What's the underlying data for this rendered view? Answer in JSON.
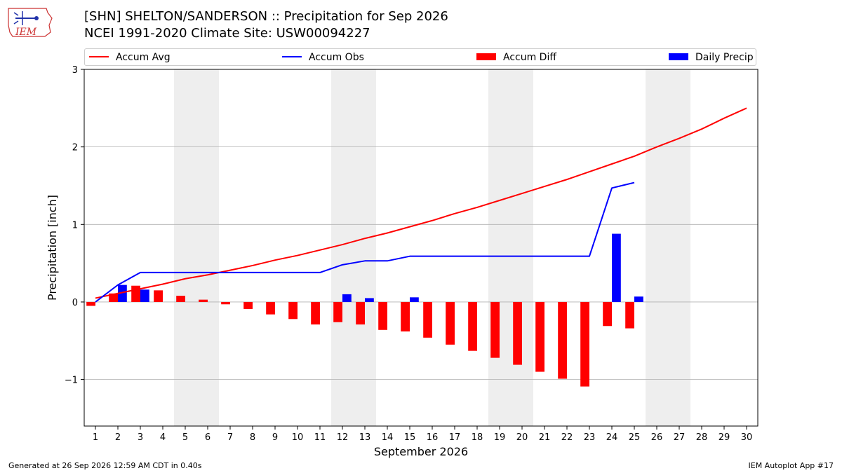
{
  "header": {
    "title_line1": "[SHN] SHELTON/SANDERSON :: Precipitation for Sep 2026",
    "title_line2": "NCEI 1991-2020 Climate Site: USW00094227",
    "logo_text": "IEM"
  },
  "legend": {
    "accum_avg": "Accum Avg",
    "accum_obs": "Accum Obs",
    "accum_diff": "Accum Diff",
    "daily_precip": "Daily Precip",
    "placement": "top"
  },
  "colors": {
    "accum_avg": "#ff0000",
    "accum_obs": "#0000ff",
    "accum_diff": "#ff0000",
    "daily_precip": "#0000ff",
    "weekend_shade": "#eeeeee",
    "grid": "#b0b0b0"
  },
  "footer": {
    "left": "Generated at 26 Sep 2026 12:59 AM CDT in 0.40s",
    "right": "IEM Autoplot App #17"
  },
  "chart_data": {
    "type": "bar",
    "xlabel": "September 2026",
    "ylabel": "Precipitation [inch]",
    "ylim": [
      -1.6,
      3.0
    ],
    "yticks": [
      -1,
      0,
      1,
      2,
      3
    ],
    "ytick_labels": [
      "−1",
      "0",
      "1",
      "2",
      "3"
    ],
    "grid": "horizontal",
    "days": [
      1,
      2,
      3,
      4,
      5,
      6,
      7,
      8,
      9,
      10,
      11,
      12,
      13,
      14,
      15,
      16,
      17,
      18,
      19,
      20,
      21,
      22,
      23,
      24,
      25,
      26,
      27,
      28,
      29,
      30
    ],
    "weekend_spans": [
      [
        5,
        6
      ],
      [
        12,
        13
      ],
      [
        19,
        20
      ],
      [
        26,
        27
      ]
    ],
    "series": [
      {
        "name": "Accum Avg",
        "kind": "line",
        "values": [
          0.05,
          0.11,
          0.17,
          0.23,
          0.3,
          0.35,
          0.41,
          0.47,
          0.54,
          0.6,
          0.67,
          0.74,
          0.82,
          0.89,
          0.97,
          1.05,
          1.14,
          1.22,
          1.31,
          1.4,
          1.49,
          1.58,
          1.68,
          1.78,
          1.88,
          2.0,
          2.11,
          2.23,
          2.37,
          2.5
        ]
      },
      {
        "name": "Accum Obs",
        "kind": "line",
        "values": [
          0.0,
          0.22,
          0.38,
          0.38,
          0.38,
          0.38,
          0.38,
          0.38,
          0.38,
          0.38,
          0.38,
          0.48,
          0.53,
          0.53,
          0.59,
          0.59,
          0.59,
          0.59,
          0.59,
          0.59,
          0.59,
          0.59,
          0.59,
          1.47,
          1.54
        ]
      },
      {
        "name": "Accum Diff",
        "kind": "bar",
        "values": [
          -0.05,
          0.11,
          0.21,
          0.15,
          0.08,
          0.03,
          -0.03,
          -0.09,
          -0.16,
          -0.22,
          -0.29,
          -0.26,
          -0.29,
          -0.36,
          -0.38,
          -0.46,
          -0.55,
          -0.63,
          -0.72,
          -0.81,
          -0.9,
          -0.99,
          -1.09,
          -0.31,
          -0.34
        ]
      },
      {
        "name": "Daily Precip",
        "kind": "bar",
        "values": [
          0.0,
          0.22,
          0.16,
          0.0,
          0.0,
          0.0,
          0.0,
          0.0,
          0.0,
          0.0,
          0.0,
          0.1,
          0.05,
          0.0,
          0.06,
          0.0,
          0.0,
          0.0,
          0.0,
          0.0,
          0.0,
          0.0,
          0.0,
          0.88,
          0.07
        ]
      }
    ]
  }
}
